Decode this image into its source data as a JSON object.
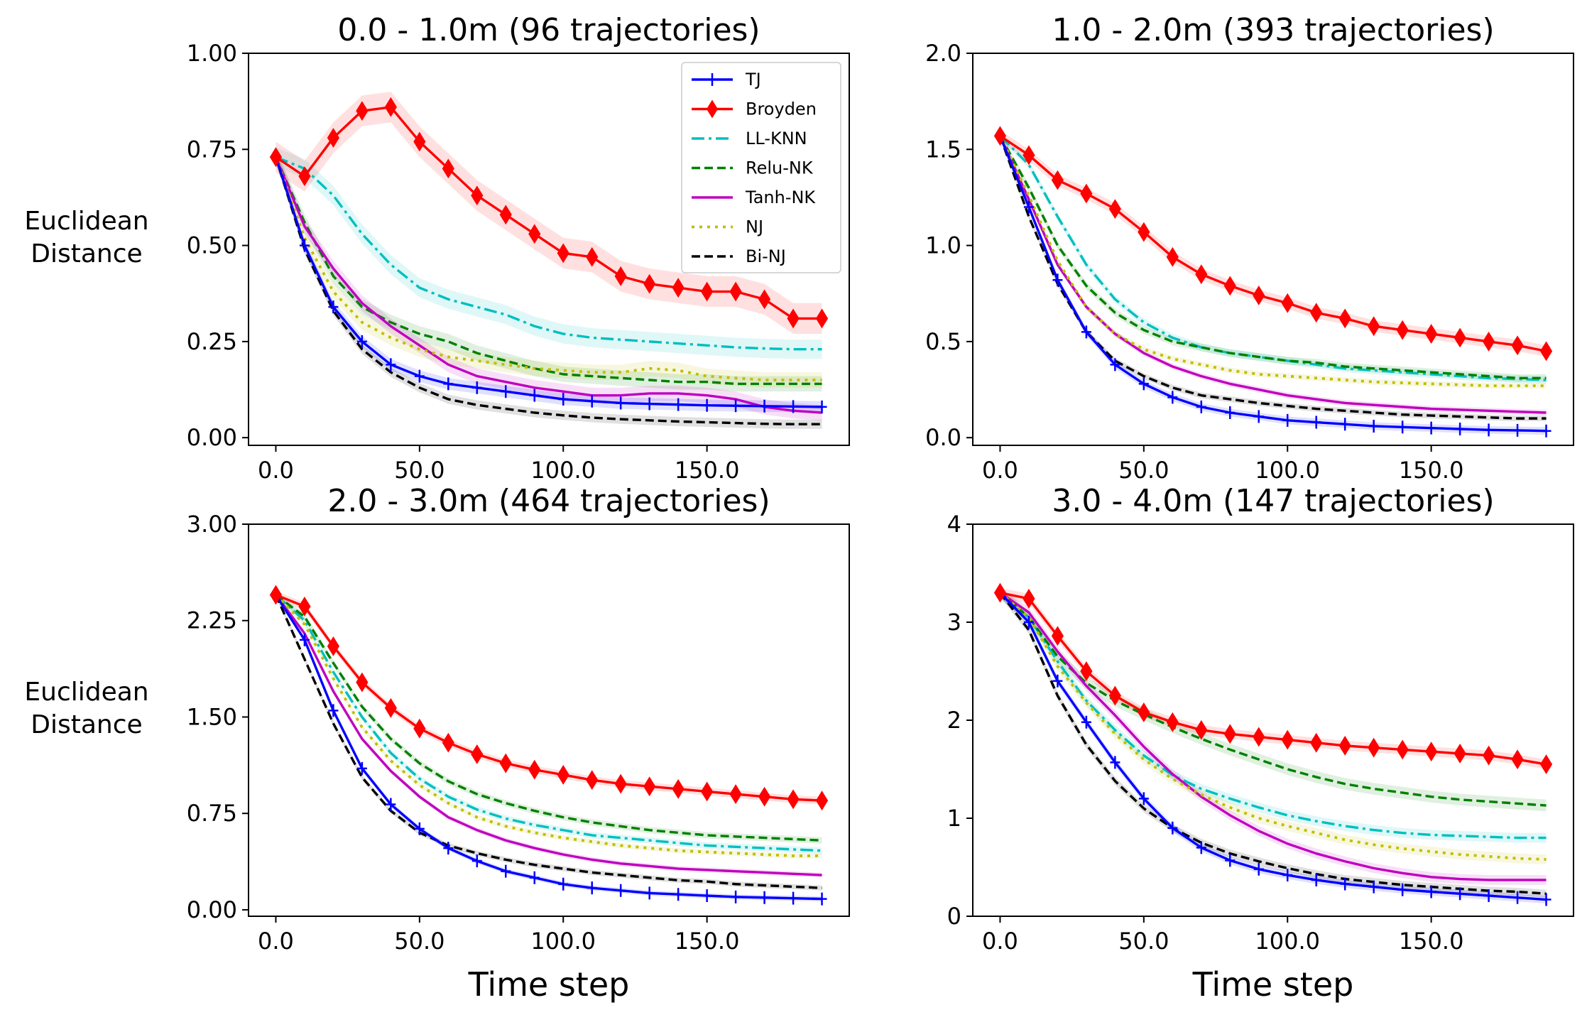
{
  "colors": {
    "TJ": "#0000ff",
    "Broyden": "#ff0000",
    "LL-KNN": "#00bfbf",
    "Relu-NK": "#008000",
    "Tanh-NK": "#bf00bf",
    "NJ": "#bfbf00",
    "Bi-NJ": "#000000"
  },
  "chart_data": [
    {
      "type": "line",
      "title": "0.0 - 1.0m (96 trajectories)",
      "xlabel": "",
      "ylabel": "Euclidean\nDistance",
      "ylabel_lines": [
        "Euclidean",
        "Distance"
      ],
      "xlim": [
        -9.5,
        199.5
      ],
      "ylim": [
        -0.02,
        1.0
      ],
      "xticks": [
        0,
        50,
        100,
        150
      ],
      "xtick_labels": [
        "0.0",
        "50.0",
        "100.0",
        "150.0"
      ],
      "yticks": [
        0,
        0.25,
        0.5,
        0.75,
        1.0
      ],
      "ytick_labels": [
        "0.00",
        "0.25",
        "0.50",
        "0.75",
        "1.00"
      ],
      "legend": "top-right",
      "x": [
        0,
        10,
        20,
        30,
        40,
        50,
        60,
        70,
        80,
        90,
        100,
        110,
        120,
        130,
        140,
        150,
        160,
        170,
        180,
        190
      ],
      "series": [
        {
          "name": "TJ",
          "values": [
            0.73,
            0.5,
            0.34,
            0.25,
            0.19,
            0.16,
            0.14,
            0.13,
            0.12,
            0.11,
            0.1,
            0.095,
            0.09,
            0.088,
            0.086,
            0.084,
            0.083,
            0.082,
            0.081,
            0.08
          ],
          "band": 0.015
        },
        {
          "name": "Broyden",
          "values": [
            0.73,
            0.68,
            0.78,
            0.85,
            0.86,
            0.77,
            0.7,
            0.63,
            0.58,
            0.53,
            0.48,
            0.47,
            0.42,
            0.4,
            0.39,
            0.38,
            0.38,
            0.36,
            0.31,
            0.31
          ],
          "band": 0.04
        },
        {
          "name": "LL-KNN",
          "values": [
            0.73,
            0.7,
            0.63,
            0.53,
            0.45,
            0.39,
            0.36,
            0.34,
            0.32,
            0.29,
            0.27,
            0.26,
            0.255,
            0.25,
            0.245,
            0.24,
            0.235,
            0.232,
            0.23,
            0.23
          ],
          "band": 0.025
        },
        {
          "name": "Relu-NK",
          "values": [
            0.73,
            0.56,
            0.42,
            0.34,
            0.3,
            0.27,
            0.25,
            0.22,
            0.2,
            0.18,
            0.165,
            0.16,
            0.155,
            0.15,
            0.145,
            0.145,
            0.14,
            0.14,
            0.14,
            0.14
          ],
          "band": 0.02
        },
        {
          "name": "Tanh-NK",
          "values": [
            0.73,
            0.55,
            0.44,
            0.35,
            0.29,
            0.24,
            0.19,
            0.16,
            0.145,
            0.13,
            0.12,
            0.11,
            0.11,
            0.115,
            0.115,
            0.11,
            0.1,
            0.08,
            0.07,
            0.065
          ],
          "band": 0.02
        },
        {
          "name": "NJ",
          "values": [
            0.73,
            0.52,
            0.38,
            0.3,
            0.26,
            0.23,
            0.21,
            0.2,
            0.19,
            0.18,
            0.175,
            0.17,
            0.17,
            0.18,
            0.175,
            0.16,
            0.155,
            0.15,
            0.15,
            0.15
          ],
          "band": 0.02
        },
        {
          "name": "Bi-NJ",
          "values": [
            0.73,
            0.49,
            0.33,
            0.23,
            0.17,
            0.13,
            0.1,
            0.085,
            0.075,
            0.065,
            0.058,
            0.052,
            0.048,
            0.045,
            0.042,
            0.04,
            0.038,
            0.036,
            0.035,
            0.035
          ],
          "band": 0.012
        }
      ]
    },
    {
      "type": "line",
      "title": "1.0 - 2.0m (393 trajectories)",
      "xlabel": "",
      "ylabel": "",
      "xlim": [
        -9.5,
        199.5
      ],
      "ylim": [
        -0.04,
        2.0
      ],
      "xticks": [
        0,
        50,
        100,
        150
      ],
      "xtick_labels": [
        "0.0",
        "50.0",
        "100.0",
        "150.0"
      ],
      "yticks": [
        0,
        0.5,
        1.0,
        1.5,
        2.0
      ],
      "ytick_labels": [
        "0.0",
        "0.5",
        "1.0",
        "1.5",
        "2.0"
      ],
      "x": [
        0,
        10,
        20,
        30,
        40,
        50,
        60,
        70,
        80,
        90,
        100,
        110,
        120,
        130,
        140,
        150,
        160,
        170,
        180,
        190
      ],
      "series": [
        {
          "name": "TJ",
          "values": [
            1.57,
            1.2,
            0.82,
            0.55,
            0.38,
            0.28,
            0.21,
            0.16,
            0.13,
            0.11,
            0.09,
            0.08,
            0.07,
            0.06,
            0.055,
            0.05,
            0.045,
            0.04,
            0.038,
            0.035
          ],
          "band": 0.02
        },
        {
          "name": "Broyden",
          "values": [
            1.57,
            1.47,
            1.34,
            1.27,
            1.19,
            1.07,
            0.94,
            0.85,
            0.79,
            0.74,
            0.7,
            0.65,
            0.62,
            0.58,
            0.56,
            0.54,
            0.52,
            0.5,
            0.48,
            0.45
          ],
          "band": 0.03
        },
        {
          "name": "LL-KNN",
          "values": [
            1.57,
            1.42,
            1.15,
            0.9,
            0.72,
            0.6,
            0.52,
            0.47,
            0.44,
            0.42,
            0.4,
            0.38,
            0.36,
            0.35,
            0.34,
            0.33,
            0.32,
            0.31,
            0.305,
            0.3
          ],
          "band": 0.02
        },
        {
          "name": "Relu-NK",
          "values": [
            1.57,
            1.3,
            1.0,
            0.79,
            0.65,
            0.56,
            0.5,
            0.47,
            0.44,
            0.42,
            0.4,
            0.39,
            0.37,
            0.36,
            0.35,
            0.34,
            0.33,
            0.32,
            0.31,
            0.31
          ],
          "band": 0.02
        },
        {
          "name": "Tanh-NK",
          "values": [
            1.57,
            1.24,
            0.9,
            0.68,
            0.54,
            0.44,
            0.37,
            0.32,
            0.28,
            0.25,
            0.22,
            0.2,
            0.18,
            0.17,
            0.16,
            0.15,
            0.145,
            0.14,
            0.135,
            0.13
          ],
          "band": 0.015
        },
        {
          "name": "NJ",
          "values": [
            1.57,
            1.26,
            0.92,
            0.68,
            0.54,
            0.46,
            0.41,
            0.38,
            0.35,
            0.33,
            0.32,
            0.31,
            0.3,
            0.29,
            0.285,
            0.28,
            0.275,
            0.27,
            0.27,
            0.27
          ],
          "band": 0.015
        },
        {
          "name": "Bi-NJ",
          "values": [
            1.57,
            1.15,
            0.8,
            0.55,
            0.4,
            0.32,
            0.26,
            0.22,
            0.2,
            0.18,
            0.165,
            0.15,
            0.14,
            0.13,
            0.12,
            0.115,
            0.11,
            0.105,
            0.1,
            0.1
          ],
          "band": 0.015
        }
      ]
    },
    {
      "type": "line",
      "title": "2.0 - 3.0m (464 trajectories)",
      "xlabel": "Time step",
      "ylabel": "Euclidean\nDistance",
      "ylabel_lines": [
        "Euclidean",
        "Distance"
      ],
      "xlim": [
        -9.5,
        199.5
      ],
      "ylim": [
        -0.05,
        3.0
      ],
      "xticks": [
        0,
        50,
        100,
        150
      ],
      "xtick_labels": [
        "0.0",
        "50.0",
        "100.0",
        "150.0"
      ],
      "yticks": [
        0,
        0.75,
        1.5,
        2.25,
        3.0
      ],
      "ytick_labels": [
        "0.00",
        "0.75",
        "1.50",
        "2.25",
        "3.00"
      ],
      "x": [
        0,
        10,
        20,
        30,
        40,
        50,
        60,
        70,
        80,
        90,
        100,
        110,
        120,
        130,
        140,
        150,
        160,
        170,
        180,
        190
      ],
      "series": [
        {
          "name": "TJ",
          "values": [
            2.45,
            2.1,
            1.55,
            1.1,
            0.82,
            0.63,
            0.48,
            0.38,
            0.3,
            0.25,
            0.2,
            0.17,
            0.15,
            0.13,
            0.12,
            0.11,
            0.1,
            0.095,
            0.09,
            0.085
          ],
          "band": 0.02
        },
        {
          "name": "Broyden",
          "values": [
            2.45,
            2.36,
            2.05,
            1.77,
            1.57,
            1.41,
            1.3,
            1.21,
            1.14,
            1.09,
            1.05,
            1.01,
            0.98,
            0.96,
            0.94,
            0.92,
            0.9,
            0.88,
            0.86,
            0.85
          ],
          "band": 0.03
        },
        {
          "name": "LL-KNN",
          "values": [
            2.45,
            2.25,
            1.85,
            1.5,
            1.22,
            1.02,
            0.88,
            0.78,
            0.71,
            0.66,
            0.62,
            0.58,
            0.56,
            0.54,
            0.52,
            0.5,
            0.49,
            0.48,
            0.47,
            0.46
          ],
          "band": 0.025
        },
        {
          "name": "Relu-NK",
          "values": [
            2.45,
            2.28,
            1.92,
            1.58,
            1.33,
            1.14,
            1.0,
            0.9,
            0.83,
            0.77,
            0.72,
            0.68,
            0.65,
            0.62,
            0.6,
            0.58,
            0.57,
            0.56,
            0.55,
            0.54
          ],
          "band": 0.025
        },
        {
          "name": "Tanh-NK",
          "values": [
            2.45,
            2.15,
            1.7,
            1.33,
            1.08,
            0.88,
            0.72,
            0.62,
            0.54,
            0.48,
            0.43,
            0.39,
            0.36,
            0.34,
            0.32,
            0.31,
            0.3,
            0.29,
            0.28,
            0.27
          ],
          "band": 0.02
        },
        {
          "name": "NJ",
          "values": [
            2.45,
            2.22,
            1.8,
            1.42,
            1.16,
            0.97,
            0.83,
            0.72,
            0.65,
            0.6,
            0.56,
            0.53,
            0.5,
            0.48,
            0.46,
            0.45,
            0.44,
            0.43,
            0.42,
            0.42
          ],
          "band": 0.02
        },
        {
          "name": "Bi-NJ",
          "values": [
            2.45,
            1.95,
            1.45,
            1.03,
            0.77,
            0.6,
            0.5,
            0.44,
            0.39,
            0.35,
            0.32,
            0.29,
            0.27,
            0.25,
            0.23,
            0.22,
            0.2,
            0.19,
            0.18,
            0.17
          ],
          "band": 0.02
        }
      ]
    },
    {
      "type": "line",
      "title": "3.0 - 4.0m (147 trajectories)",
      "xlabel": "Time step",
      "ylabel": "",
      "xlim": [
        -9.5,
        199.5
      ],
      "ylim": [
        0,
        4.0
      ],
      "xticks": [
        0,
        50,
        100,
        150
      ],
      "xtick_labels": [
        "0.0",
        "50.0",
        "100.0",
        "150.0"
      ],
      "yticks": [
        0,
        1,
        2,
        3,
        4
      ],
      "ytick_labels": [
        "0",
        "1",
        "2",
        "3",
        "4"
      ],
      "x": [
        0,
        10,
        20,
        30,
        40,
        50,
        60,
        70,
        80,
        90,
        100,
        110,
        120,
        130,
        140,
        150,
        160,
        170,
        180,
        190
      ],
      "series": [
        {
          "name": "TJ",
          "values": [
            3.3,
            3.0,
            2.4,
            1.98,
            1.57,
            1.2,
            0.9,
            0.7,
            0.57,
            0.48,
            0.42,
            0.37,
            0.33,
            0.3,
            0.27,
            0.25,
            0.23,
            0.21,
            0.19,
            0.17
          ],
          "band": 0.04
        },
        {
          "name": "Broyden",
          "values": [
            3.3,
            3.24,
            2.86,
            2.5,
            2.25,
            2.08,
            1.98,
            1.9,
            1.86,
            1.83,
            1.8,
            1.77,
            1.74,
            1.72,
            1.7,
            1.68,
            1.66,
            1.64,
            1.6,
            1.55
          ],
          "band": 0.05
        },
        {
          "name": "LL-KNN",
          "values": [
            3.3,
            3.05,
            2.6,
            2.2,
            1.9,
            1.64,
            1.44,
            1.3,
            1.2,
            1.11,
            1.03,
            0.97,
            0.92,
            0.88,
            0.85,
            0.83,
            0.82,
            0.81,
            0.8,
            0.8
          ],
          "band": 0.05
        },
        {
          "name": "Relu-NK",
          "values": [
            3.3,
            3.05,
            2.65,
            2.38,
            2.2,
            2.06,
            1.93,
            1.81,
            1.7,
            1.6,
            1.5,
            1.42,
            1.35,
            1.3,
            1.26,
            1.22,
            1.19,
            1.17,
            1.15,
            1.13
          ],
          "band": 0.06
        },
        {
          "name": "Tanh-NK",
          "values": [
            3.3,
            3.1,
            2.7,
            2.35,
            2.05,
            1.73,
            1.45,
            1.22,
            1.03,
            0.87,
            0.74,
            0.64,
            0.56,
            0.49,
            0.44,
            0.4,
            0.38,
            0.37,
            0.37,
            0.37
          ],
          "band": 0.05
        },
        {
          "name": "NJ",
          "values": [
            3.3,
            3.05,
            2.55,
            2.18,
            1.86,
            1.6,
            1.4,
            1.24,
            1.11,
            1.0,
            0.92,
            0.85,
            0.78,
            0.73,
            0.69,
            0.66,
            0.63,
            0.61,
            0.59,
            0.58
          ],
          "band": 0.05
        },
        {
          "name": "Bi-NJ",
          "values": [
            3.3,
            2.92,
            2.25,
            1.75,
            1.38,
            1.1,
            0.9,
            0.75,
            0.64,
            0.56,
            0.49,
            0.43,
            0.38,
            0.35,
            0.32,
            0.3,
            0.28,
            0.26,
            0.25,
            0.23
          ],
          "band": 0.04
        }
      ]
    }
  ]
}
